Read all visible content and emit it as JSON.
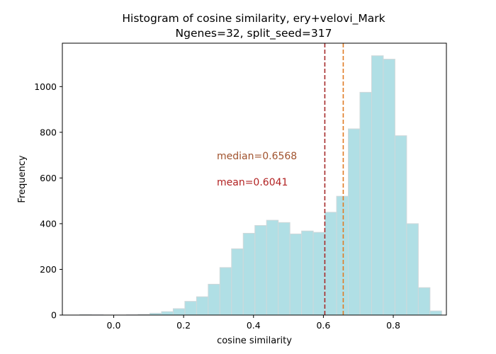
{
  "chart_data": {
    "type": "bar",
    "title": "Histogram of cosine similarity, ery+velovi_Mark",
    "subtitle": "Ngenes=32, split_seed=317",
    "xlabel": "cosine similarity",
    "ylabel": "Frequency",
    "xlim": [
      -0.147,
      0.952
    ],
    "ylim": [
      0,
      1190
    ],
    "xticks": [
      0.0,
      0.2,
      0.4,
      0.6,
      0.8
    ],
    "xtick_labels": [
      "0.0",
      "0.2",
      "0.4",
      "0.6",
      "0.8"
    ],
    "yticks": [
      0,
      200,
      400,
      600,
      800,
      1000
    ],
    "ytick_labels": [
      "0",
      "200",
      "400",
      "600",
      "800",
      "1000"
    ],
    "bin_start": -0.097,
    "bin_width": 0.0334,
    "values": [
      2,
      1,
      0,
      0,
      1,
      3,
      8,
      15,
      28,
      60,
      80,
      135,
      208,
      290,
      358,
      392,
      415,
      405,
      355,
      368,
      362,
      450,
      520,
      815,
      975,
      1135,
      1120,
      785,
      400,
      120,
      18
    ],
    "bar_color": "#b0dfe5",
    "bar_edge_color": "#cfd8da",
    "grid": false,
    "legend": "none",
    "vlines": [
      {
        "name": "mean",
        "x": 0.6041,
        "color": "#a52a2a",
        "style": "dashed"
      },
      {
        "name": "median",
        "x": 0.6568,
        "color": "#e07b24",
        "style": "dashed"
      }
    ],
    "annotations": [
      {
        "text": "median=0.6568",
        "color": "#a0522d"
      },
      {
        "text": "mean=0.6041",
        "color": "#b22222"
      }
    ]
  }
}
